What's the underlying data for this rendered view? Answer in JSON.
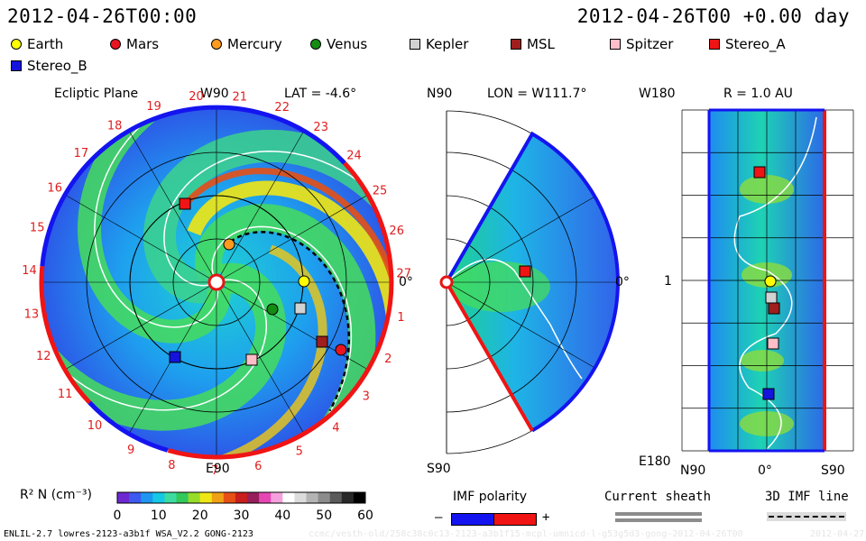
{
  "header": {
    "timestamp_left": "2012-04-26T00:00",
    "timestamp_right": "2012-04-26T00 +0.00 day"
  },
  "legend": [
    {
      "label": "Earth",
      "shape": "circle",
      "color": "#ffff00"
    },
    {
      "label": "Mars",
      "shape": "circle",
      "color": "#e8141e"
    },
    {
      "label": "Mercury",
      "shape": "circle",
      "color": "#ff9a1e"
    },
    {
      "label": "Venus",
      "shape": "circle",
      "color": "#148c14"
    },
    {
      "label": "Kepler",
      "shape": "square",
      "color": "#d2d2d2"
    },
    {
      "label": "MSL",
      "shape": "square",
      "color": "#a01e1e"
    },
    {
      "label": "Spitzer",
      "shape": "square",
      "color": "#ffbec8"
    },
    {
      "label": "Stereo_A",
      "shape": "square",
      "color": "#f01414"
    },
    {
      "label": "Stereo_B",
      "shape": "square",
      "color": "#1414dc"
    }
  ],
  "panel_ecliptic": {
    "title": "Ecliptic Plane",
    "top_label": "W90",
    "bottom_label": "E90",
    "right_label": "0°",
    "lat_label": "LAT = -4.6°",
    "sector_numbers": [
      "27",
      "1",
      "2",
      "3",
      "4",
      "5",
      "6",
      "7",
      "8",
      "9",
      "10",
      "11",
      "12",
      "13",
      "14",
      "15",
      "16",
      "17",
      "18",
      "19",
      "20",
      "21",
      "22",
      "23",
      "24",
      "25",
      "26"
    ]
  },
  "panel_meridional": {
    "top_label": "N90",
    "bottom_label": "S90",
    "right_label": "0°",
    "lon_label": "LON = W111.7°"
  },
  "panel_r": {
    "title": "R = 1.0 AU",
    "top_left": "W180",
    "mid_left": "1",
    "bottom_left": "E180",
    "x_left": "N90",
    "x_mid": "0°",
    "x_right": "S90"
  },
  "colorbar": {
    "label": "R² N (cm⁻³)",
    "ticks": [
      "0",
      "10",
      "20",
      "30",
      "40",
      "50",
      "60"
    ],
    "colors": [
      "#6e28d2",
      "#3c5af0",
      "#1e96f0",
      "#14c8e6",
      "#3cdca0",
      "#32c85a",
      "#96dc28",
      "#f0e614",
      "#f0a014",
      "#e65014",
      "#c81e1e",
      "#961e5a",
      "#e646b4",
      "#f5a0dc",
      "#ffffff",
      "#dcdcdc",
      "#b4b4b4",
      "#8c8c8c",
      "#5a5a5a",
      "#282828",
      "#000000"
    ]
  },
  "imf": {
    "label": "IMF polarity",
    "minus": "–",
    "plus": "+",
    "neg_color": "#1414f0",
    "pos_color": "#f01414"
  },
  "sheath": {
    "label": "Current sheath"
  },
  "imfline": {
    "label": "3D IMF line"
  },
  "footer": {
    "left": "ENLIL-2.7 lowres-2123-a3b1f WSA_V2.2 GONG-2123",
    "watermark": "ccmc/vesth-old/258c38c0c13-2123-a3b1f15-mcpl-umnicd-l-g53g5d3-gong-2012-04-26T00",
    "right": "2012-04-27"
  },
  "chart_data": {
    "type": "heatmap",
    "title": "R² N (cm⁻³)",
    "colorbar_range": [
      0,
      60
    ],
    "bodies": [
      {
        "name": "Earth",
        "panel": "ecliptic"
      },
      {
        "name": "Mars",
        "panel": "ecliptic"
      },
      {
        "name": "Mercury",
        "panel": "ecliptic"
      },
      {
        "name": "Venus",
        "panel": "ecliptic"
      },
      {
        "name": "Kepler",
        "panel": "ecliptic"
      },
      {
        "name": "MSL",
        "panel": "ecliptic"
      },
      {
        "name": "Spitzer",
        "panel": "ecliptic"
      },
      {
        "name": "Stereo_A",
        "panel": "ecliptic"
      },
      {
        "name": "Stereo_B",
        "panel": "ecliptic"
      }
    ]
  }
}
